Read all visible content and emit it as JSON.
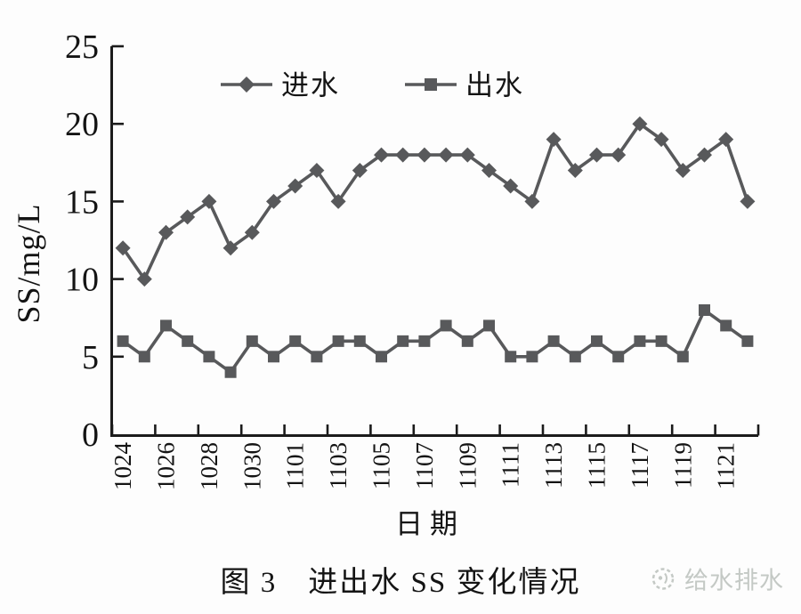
{
  "figure": {
    "caption": "图 3　进出水 SS 变化情况",
    "watermark_text": "给水排水"
  },
  "chart_data": {
    "type": "line",
    "title": "图 3 进出水 SS 变化情况",
    "xlabel": "日期",
    "ylabel": "SS/mg/L",
    "ylim": [
      0,
      25
    ],
    "yticks": [
      0,
      5,
      10,
      15,
      20,
      25
    ],
    "grid": false,
    "legend_position": "top-center-inside",
    "categories": [
      "1024",
      "1025",
      "1026",
      "1027",
      "1028",
      "1029",
      "1030",
      "1031",
      "1101",
      "1102",
      "1103",
      "1104",
      "1105",
      "1106",
      "1107",
      "1108",
      "1109",
      "1110",
      "1111",
      "1112",
      "1113",
      "1114",
      "1115",
      "1116",
      "1117",
      "1118",
      "1119",
      "1120",
      "1121",
      "1122"
    ],
    "xtick_labels": [
      "1024",
      "1026",
      "1028",
      "1030",
      "1101",
      "1103",
      "1105",
      "1107",
      "1109",
      "1111",
      "1113",
      "1115",
      "1117",
      "1119",
      "1121"
    ],
    "series": [
      {
        "name": "进水",
        "key": "influent",
        "marker": "diamond",
        "values": [
          12,
          10,
          13,
          14,
          15,
          12,
          13,
          15,
          16,
          17,
          15,
          17,
          18,
          18,
          18,
          18,
          18,
          17,
          16,
          15,
          19,
          17,
          18,
          18,
          20,
          19,
          17,
          18,
          19,
          15
        ]
      },
      {
        "name": "出水",
        "key": "effluent",
        "marker": "square",
        "values": [
          6,
          5,
          7,
          6,
          5,
          4,
          6,
          5,
          6,
          5,
          6,
          6,
          5,
          6,
          6,
          7,
          6,
          7,
          5,
          5,
          6,
          5,
          6,
          5,
          6,
          6,
          5,
          8,
          7,
          6
        ]
      }
    ]
  },
  "colors": {
    "series": "#58595b",
    "axis": "#1b1b1b",
    "text": "#141414",
    "watermark": "#c4c9c5",
    "background": "#fdfdfd"
  }
}
